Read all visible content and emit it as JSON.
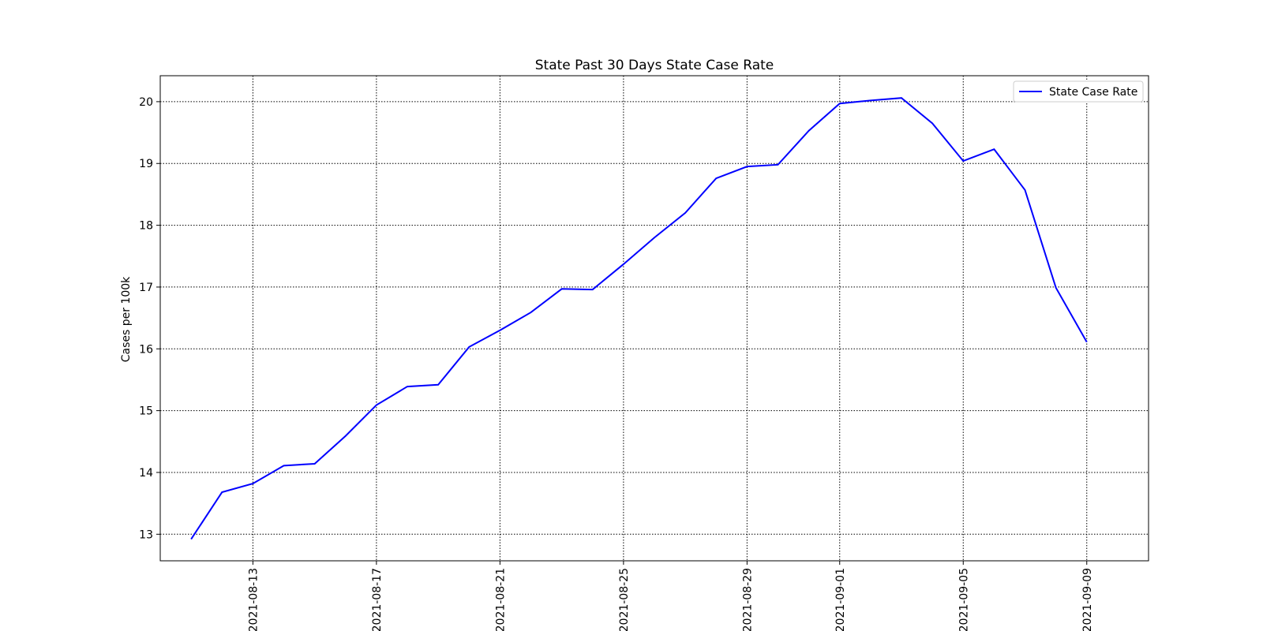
{
  "chart_data": {
    "type": "line",
    "title": "State Past 30 Days  State Case Rate",
    "ylabel": "Cases per 100k",
    "x": [
      "2021-08-11",
      "2021-08-12",
      "2021-08-13",
      "2021-08-14",
      "2021-08-15",
      "2021-08-16",
      "2021-08-17",
      "2021-08-18",
      "2021-08-19",
      "2021-08-20",
      "2021-08-21",
      "2021-08-22",
      "2021-08-23",
      "2021-08-24",
      "2021-08-25",
      "2021-08-26",
      "2021-08-27",
      "2021-08-28",
      "2021-08-29",
      "2021-08-30",
      "2021-08-31",
      "2021-09-01",
      "2021-09-02",
      "2021-09-03",
      "2021-09-04",
      "2021-09-05",
      "2021-09-06",
      "2021-09-07",
      "2021-09-08",
      "2021-09-09"
    ],
    "series": [
      {
        "name": "State Case Rate",
        "color": "#0000ff",
        "values": [
          12.92,
          13.68,
          13.82,
          14.11,
          14.14,
          14.59,
          15.09,
          15.39,
          15.42,
          16.03,
          16.3,
          16.59,
          16.97,
          16.96,
          17.37,
          17.8,
          18.2,
          18.76,
          18.95,
          18.98,
          19.53,
          19.97,
          20.02,
          20.06,
          19.65,
          19.04,
          19.23,
          18.57,
          16.99,
          16.11
        ]
      }
    ],
    "xlim": [
      "2021-08-10",
      "2021-09-11"
    ],
    "xticks": [
      "2021-08-13",
      "2021-08-17",
      "2021-08-21",
      "2021-08-25",
      "2021-08-29",
      "2021-09-01",
      "2021-09-05",
      "2021-09-09"
    ],
    "ylim": [
      12.57,
      20.42
    ],
    "yticks": [
      13,
      14,
      15,
      16,
      17,
      18,
      19,
      20
    ],
    "grid": true,
    "legend": "upper right"
  }
}
